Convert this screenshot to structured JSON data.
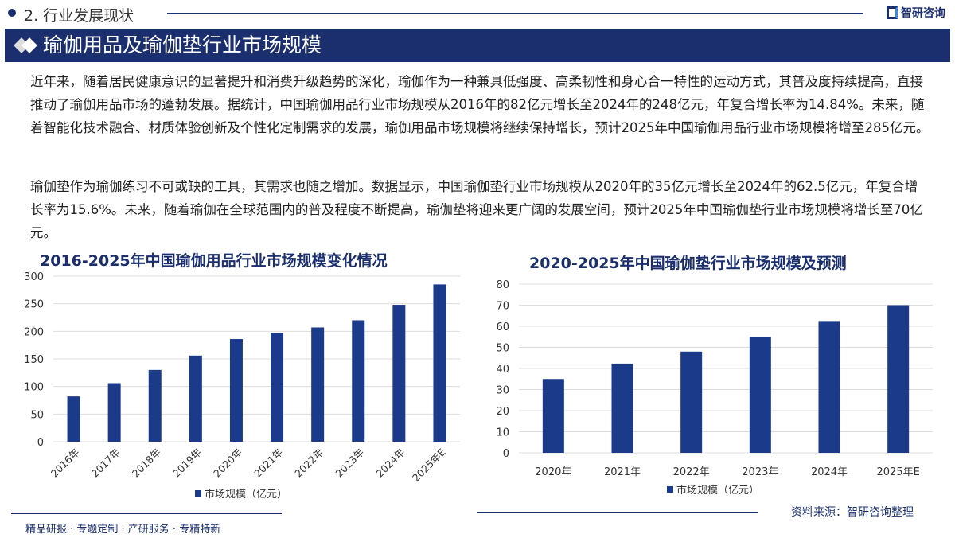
{
  "header": {
    "section": "2. 行业发展现状",
    "brand": "智研咨询",
    "title": "瑜伽用品及瑜伽垫行业市场规模"
  },
  "paragraphs": [
    "近年来，随着居民健康意识的显著提升和消费升级趋势的深化，瑜伽作为一种兼具低强度、高柔韧性和身心合一特性的运动方式，其普及度持续提高，直接推动了瑜伽用品市场的蓬勃发展。据统计，中国瑜伽用品行业市场规模从2016年的82亿元增长至2024年的248亿元，年复合增长率为14.84%。未来，随着智能化技术融合、材质体验创新及个性化定制需求的发展，瑜伽用品市场规模将继续保持增长，预计2025年中国瑜伽用品行业市场规模将增至285亿元。",
    "瑜伽垫作为瑜伽练习不可或缺的工具，其需求也随之增加。数据显示，中国瑜伽垫行业市场规模从2020年的35亿元增长至2024年的62.5亿元，年复合增长率为15.6%。未来，随着瑜伽在全球范围内的普及程度不断提高，瑜伽垫将迎来更广阔的发展空间，预计2025年中国瑜伽垫行业市场规模将增长至70亿元。"
  ],
  "chart_data": [
    {
      "type": "bar",
      "title": "2016-2025年中国瑜伽用品行业市场规模变化情况",
      "categories": [
        "2016年",
        "2017年",
        "2018年",
        "2019年",
        "2020年",
        "2021年",
        "2022年",
        "2023年",
        "2024年",
        "2025年E"
      ],
      "series": [
        {
          "name": "市场规模（亿元）",
          "values": [
            82,
            106,
            130,
            156,
            186,
            197,
            207,
            220,
            248,
            285
          ]
        }
      ],
      "yticks": [
        0,
        50,
        100,
        150,
        200,
        250,
        300
      ],
      "ylim": [
        0,
        300
      ],
      "grid": true,
      "legend": "bottom",
      "color": "#1b3a8a"
    },
    {
      "type": "bar",
      "title": "2020-2025年中国瑜伽垫行业市场规模及预测",
      "categories": [
        "2020年",
        "2021年",
        "2022年",
        "2023年",
        "2024年",
        "2025年E"
      ],
      "series": [
        {
          "name": "市场规模（亿元）",
          "values": [
            35,
            42.3,
            48,
            54.8,
            62.5,
            70
          ]
        }
      ],
      "yticks": [
        0,
        10,
        20,
        30,
        40,
        50,
        60,
        70,
        80
      ],
      "ylim": [
        0,
        80
      ],
      "grid": true,
      "legend": "bottom",
      "color": "#1b3a8a"
    }
  ],
  "footer": {
    "slogan": "精品研报 · 专题定制 · 产研服务 · 专精特新",
    "source": "资料来源：智研咨询整理"
  }
}
